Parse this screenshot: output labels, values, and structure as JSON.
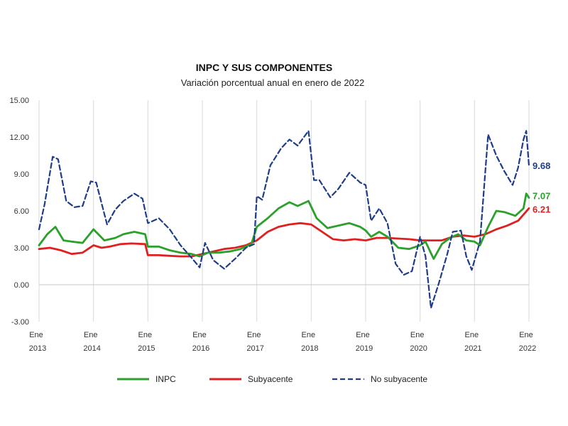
{
  "chart_data": {
    "type": "line",
    "title": "INPC Y SUS COMPONENTES",
    "subtitle": "Variación porcentual anual en enero de 2022",
    "xlabel": "",
    "ylabel": "",
    "ylim": [
      -3,
      15
    ],
    "yticks": [
      "15.00",
      "12.00",
      "9.00",
      "6.00",
      "3.00",
      "0.00",
      "-3.00"
    ],
    "ytick_values": [
      15,
      12,
      9,
      6,
      3,
      0,
      -3
    ],
    "xlim": [
      2013.0,
      2022.0
    ],
    "xtick_values": [
      2013,
      2014,
      2015,
      2016,
      2017,
      2018,
      2019,
      2020,
      2021,
      2022
    ],
    "xticks": [
      {
        "top": "Ene",
        "bottom": "2013"
      },
      {
        "top": "Ene",
        "bottom": "2014"
      },
      {
        "top": "Ene",
        "bottom": "2015"
      },
      {
        "top": "Ene",
        "bottom": "2016"
      },
      {
        "top": "Ene",
        "bottom": "2017"
      },
      {
        "top": "Ene",
        "bottom": "2018"
      },
      {
        "top": "Ene",
        "bottom": "2019"
      },
      {
        "top": "Ene",
        "bottom": "2020"
      },
      {
        "top": "Ene",
        "bottom": "2021"
      },
      {
        "top": "Ene",
        "bottom": "2022"
      }
    ],
    "grid": "vertical",
    "legend_position": "bottom",
    "series": [
      {
        "name": "INPC",
        "color": "#2ca02c",
        "style": "solid",
        "end_label": "7.07",
        "points": [
          [
            2013.0,
            3.2
          ],
          [
            2013.15,
            4.1
          ],
          [
            2013.3,
            4.7
          ],
          [
            2013.45,
            3.6
          ],
          [
            2013.6,
            3.5
          ],
          [
            2013.8,
            3.4
          ],
          [
            2014.0,
            4.5
          ],
          [
            2014.2,
            3.6
          ],
          [
            2014.4,
            3.8
          ],
          [
            2014.55,
            4.1
          ],
          [
            2014.75,
            4.3
          ],
          [
            2014.95,
            4.1
          ],
          [
            2015.0,
            3.1
          ],
          [
            2015.2,
            3.1
          ],
          [
            2015.4,
            2.8
          ],
          [
            2015.6,
            2.6
          ],
          [
            2015.8,
            2.5
          ],
          [
            2015.95,
            2.3
          ],
          [
            2016.1,
            2.6
          ],
          [
            2016.3,
            2.6
          ],
          [
            2016.5,
            2.7
          ],
          [
            2016.7,
            2.9
          ],
          [
            2016.9,
            3.3
          ],
          [
            2017.0,
            4.7
          ],
          [
            2017.2,
            5.4
          ],
          [
            2017.4,
            6.2
          ],
          [
            2017.6,
            6.7
          ],
          [
            2017.75,
            6.4
          ],
          [
            2017.95,
            6.8
          ],
          [
            2018.1,
            5.4
          ],
          [
            2018.3,
            4.6
          ],
          [
            2018.5,
            4.8
          ],
          [
            2018.7,
            5.0
          ],
          [
            2018.9,
            4.7
          ],
          [
            2019.0,
            4.4
          ],
          [
            2019.1,
            3.9
          ],
          [
            2019.25,
            4.3
          ],
          [
            2019.4,
            3.9
          ],
          [
            2019.6,
            3.0
          ],
          [
            2019.8,
            2.9
          ],
          [
            2020.0,
            3.2
          ],
          [
            2020.1,
            3.5
          ],
          [
            2020.25,
            2.1
          ],
          [
            2020.4,
            3.3
          ],
          [
            2020.55,
            3.8
          ],
          [
            2020.7,
            4.1
          ],
          [
            2020.85,
            3.6
          ],
          [
            2021.0,
            3.5
          ],
          [
            2021.1,
            3.2
          ],
          [
            2021.25,
            4.7
          ],
          [
            2021.4,
            6.0
          ],
          [
            2021.55,
            5.9
          ],
          [
            2021.75,
            5.6
          ],
          [
            2021.9,
            6.2
          ],
          [
            2021.95,
            7.4
          ],
          [
            2022.0,
            7.07
          ]
        ]
      },
      {
        "name": "Subyacente",
        "color": "#e02020",
        "style": "solid",
        "end_label": "6.21",
        "points": [
          [
            2013.0,
            2.9
          ],
          [
            2013.2,
            3.0
          ],
          [
            2013.4,
            2.8
          ],
          [
            2013.6,
            2.5
          ],
          [
            2013.8,
            2.6
          ],
          [
            2014.0,
            3.2
          ],
          [
            2014.15,
            3.0
          ],
          [
            2014.3,
            3.1
          ],
          [
            2014.5,
            3.3
          ],
          [
            2014.7,
            3.35
          ],
          [
            2014.95,
            3.3
          ],
          [
            2015.0,
            2.4
          ],
          [
            2015.2,
            2.4
          ],
          [
            2015.4,
            2.35
          ],
          [
            2015.6,
            2.3
          ],
          [
            2015.8,
            2.3
          ],
          [
            2016.0,
            2.5
          ],
          [
            2016.2,
            2.7
          ],
          [
            2016.4,
            2.9
          ],
          [
            2016.6,
            3.0
          ],
          [
            2016.8,
            3.2
          ],
          [
            2017.0,
            3.6
          ],
          [
            2017.2,
            4.3
          ],
          [
            2017.4,
            4.7
          ],
          [
            2017.6,
            4.9
          ],
          [
            2017.8,
            5.0
          ],
          [
            2018.0,
            4.9
          ],
          [
            2018.2,
            4.3
          ],
          [
            2018.4,
            3.7
          ],
          [
            2018.6,
            3.6
          ],
          [
            2018.8,
            3.7
          ],
          [
            2019.0,
            3.6
          ],
          [
            2019.2,
            3.8
          ],
          [
            2019.4,
            3.8
          ],
          [
            2019.6,
            3.75
          ],
          [
            2019.8,
            3.7
          ],
          [
            2020.0,
            3.6
          ],
          [
            2020.2,
            3.6
          ],
          [
            2020.4,
            3.6
          ],
          [
            2020.6,
            3.9
          ],
          [
            2020.8,
            4.0
          ],
          [
            2021.0,
            3.9
          ],
          [
            2021.2,
            4.1
          ],
          [
            2021.4,
            4.5
          ],
          [
            2021.6,
            4.8
          ],
          [
            2021.8,
            5.2
          ],
          [
            2022.0,
            6.21
          ]
        ]
      },
      {
        "name": "No subyacente",
        "color": "#1f3c88",
        "style": "dashed",
        "end_label": "9.68",
        "points": [
          [
            2013.0,
            4.5
          ],
          [
            2013.1,
            6.5
          ],
          [
            2013.25,
            10.4
          ],
          [
            2013.35,
            10.2
          ],
          [
            2013.5,
            6.8
          ],
          [
            2013.65,
            6.3
          ],
          [
            2013.8,
            6.4
          ],
          [
            2013.95,
            8.4
          ],
          [
            2014.05,
            8.3
          ],
          [
            2014.25,
            4.9
          ],
          [
            2014.4,
            6.1
          ],
          [
            2014.55,
            6.8
          ],
          [
            2014.75,
            7.4
          ],
          [
            2014.9,
            7.0
          ],
          [
            2015.0,
            5.0
          ],
          [
            2015.2,
            5.4
          ],
          [
            2015.4,
            4.5
          ],
          [
            2015.6,
            3.2
          ],
          [
            2015.8,
            2.2
          ],
          [
            2015.95,
            1.4
          ],
          [
            2016.05,
            3.4
          ],
          [
            2016.2,
            2.0
          ],
          [
            2016.4,
            1.3
          ],
          [
            2016.6,
            2.1
          ],
          [
            2016.8,
            3.0
          ],
          [
            2016.95,
            3.3
          ],
          [
            2017.0,
            7.2
          ],
          [
            2017.1,
            6.9
          ],
          [
            2017.25,
            9.7
          ],
          [
            2017.45,
            11.1
          ],
          [
            2017.6,
            11.8
          ],
          [
            2017.75,
            11.3
          ],
          [
            2017.95,
            12.5
          ],
          [
            2018.05,
            8.5
          ],
          [
            2018.15,
            8.5
          ],
          [
            2018.35,
            7.1
          ],
          [
            2018.5,
            7.8
          ],
          [
            2018.7,
            9.1
          ],
          [
            2018.9,
            8.3
          ],
          [
            2019.0,
            8.1
          ],
          [
            2019.1,
            5.2
          ],
          [
            2019.25,
            6.2
          ],
          [
            2019.4,
            5.0
          ],
          [
            2019.55,
            1.7
          ],
          [
            2019.7,
            0.8
          ],
          [
            2019.85,
            1.1
          ],
          [
            2020.0,
            3.9
          ],
          [
            2020.1,
            2.3
          ],
          [
            2020.2,
            -1.9
          ],
          [
            2020.35,
            0.2
          ],
          [
            2020.5,
            2.5
          ],
          [
            2020.6,
            4.3
          ],
          [
            2020.75,
            4.4
          ],
          [
            2020.85,
            2.3
          ],
          [
            2020.95,
            1.2
          ],
          [
            2021.1,
            3.5
          ],
          [
            2021.25,
            12.2
          ],
          [
            2021.4,
            10.5
          ],
          [
            2021.55,
            9.2
          ],
          [
            2021.7,
            8.1
          ],
          [
            2021.8,
            9.5
          ],
          [
            2021.9,
            11.8
          ],
          [
            2021.95,
            12.5
          ],
          [
            2022.0,
            9.68
          ]
        ]
      }
    ]
  }
}
